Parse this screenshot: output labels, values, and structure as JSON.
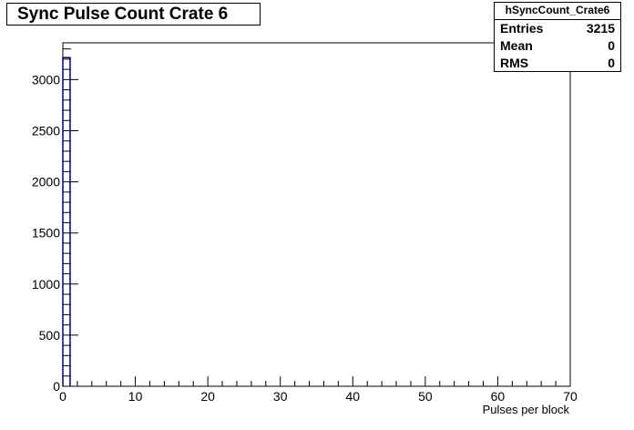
{
  "title": "Sync Pulse Count Crate 6",
  "stats": {
    "name": "hSyncCount_Crate6",
    "rows": [
      {
        "label": "Entries",
        "value": "3215"
      },
      {
        "label": "Mean",
        "value": "0"
      },
      {
        "label": "RMS",
        "value": "0"
      }
    ]
  },
  "chart_data": {
    "type": "bar",
    "title": "Sync Pulse Count Crate 6",
    "xlabel": "Pulses per block",
    "ylabel": "",
    "xlim": [
      0,
      70
    ],
    "ylim": [
      0,
      3360
    ],
    "x_ticks": [
      0,
      10,
      20,
      30,
      40,
      50,
      60,
      70
    ],
    "y_ticks": [
      0,
      500,
      1000,
      1500,
      2000,
      2500,
      3000
    ],
    "bins": [
      {
        "x_low": 0,
        "x_high": 1,
        "value": 3215
      }
    ],
    "colors": {
      "line": "#000080"
    }
  }
}
